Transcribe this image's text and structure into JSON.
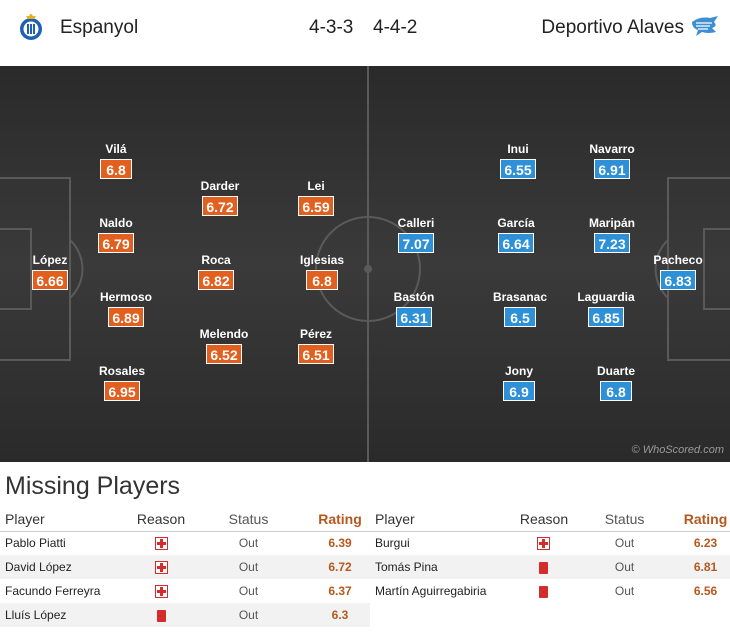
{
  "header": {
    "home_team": "Espanyol",
    "home_formation": "4-3-3",
    "away_formation": "4-4-2",
    "away_team": "Deportivo Alaves",
    "home_crest_icon": "espanyol-crest-icon",
    "away_crest_icon": "alaves-crest-icon"
  },
  "colors": {
    "home_rating_bg": "#e2601f",
    "away_rating_bg": "#2e90d6",
    "pitch": "#333333"
  },
  "pitch": {
    "watermark": "© WhoScored.com",
    "home_players": [
      {
        "name": "López",
        "rating": "6.66"
      },
      {
        "name": "Vilá",
        "rating": "6.8"
      },
      {
        "name": "Naldo",
        "rating": "6.79"
      },
      {
        "name": "Hermoso",
        "rating": "6.89"
      },
      {
        "name": "Rosales",
        "rating": "6.95"
      },
      {
        "name": "Darder",
        "rating": "6.72"
      },
      {
        "name": "Roca",
        "rating": "6.82"
      },
      {
        "name": "Melendo",
        "rating": "6.52"
      },
      {
        "name": "Lei",
        "rating": "6.59"
      },
      {
        "name": "Iglesias",
        "rating": "6.8"
      },
      {
        "name": "Pérez",
        "rating": "6.51"
      }
    ],
    "away_players": [
      {
        "name": "Pacheco",
        "rating": "6.83"
      },
      {
        "name": "Navarro",
        "rating": "6.91"
      },
      {
        "name": "Maripán",
        "rating": "7.23"
      },
      {
        "name": "Laguardia",
        "rating": "6.85"
      },
      {
        "name": "Duarte",
        "rating": "6.8"
      },
      {
        "name": "Inui",
        "rating": "6.55"
      },
      {
        "name": "García",
        "rating": "6.64"
      },
      {
        "name": "Brasanac",
        "rating": "6.5"
      },
      {
        "name": "Jony",
        "rating": "6.9"
      },
      {
        "name": "Calleri",
        "rating": "7.07"
      },
      {
        "name": "Bastón",
        "rating": "6.31"
      }
    ]
  },
  "missing": {
    "title": "Missing Players",
    "columns": [
      "Player",
      "Reason",
      "Status",
      "Rating"
    ],
    "home": [
      {
        "player": "Pablo Piatti",
        "reason": "injury",
        "status": "Out",
        "rating": "6.39"
      },
      {
        "player": "David López",
        "reason": "injury",
        "status": "Out",
        "rating": "6.72"
      },
      {
        "player": "Facundo Ferreyra",
        "reason": "injury",
        "status": "Out",
        "rating": "6.37"
      },
      {
        "player": "Lluís López",
        "reason": "red-card",
        "status": "Out",
        "rating": "6.3"
      }
    ],
    "away": [
      {
        "player": "Burgui",
        "reason": "injury",
        "status": "Out",
        "rating": "6.23"
      },
      {
        "player": "Tomás Pina",
        "reason": "red-card",
        "status": "Out",
        "rating": "6.81"
      },
      {
        "player": "Martín Aguirregabiria",
        "reason": "red-card",
        "status": "Out",
        "rating": "6.56"
      }
    ]
  }
}
